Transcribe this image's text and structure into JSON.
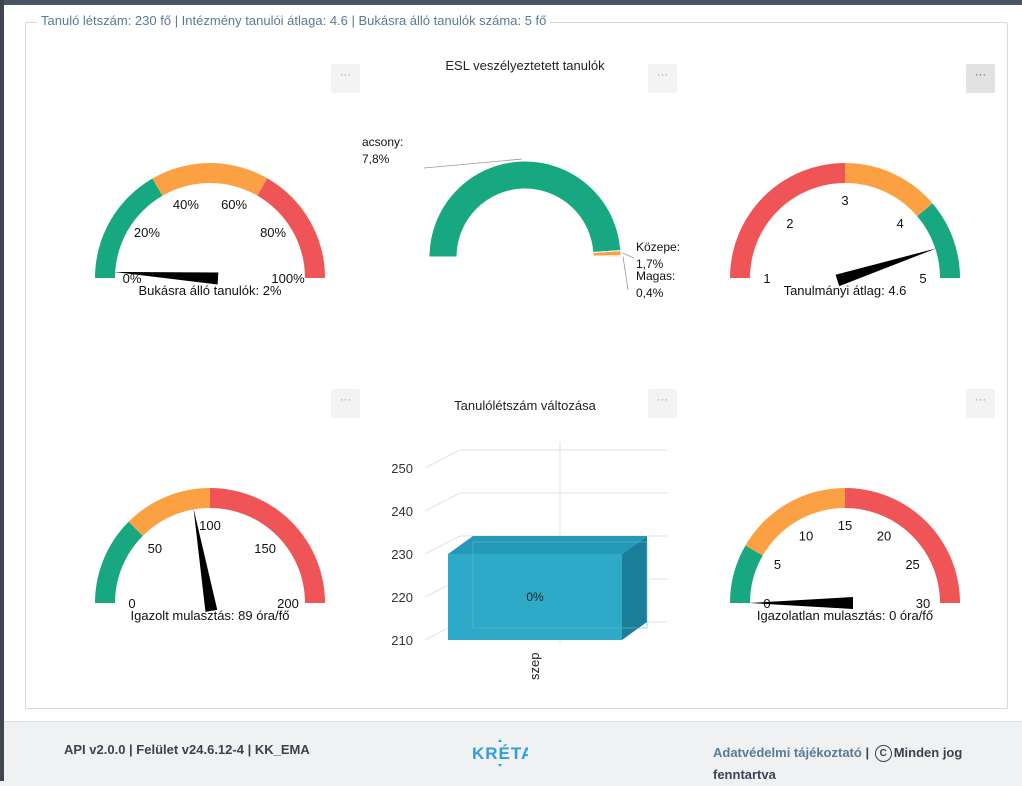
{
  "legend_text": "Tanuló létszám: 230 fő | Intézmény tanulói átlaga: 4.6 | Bukásra álló tanulók száma: 5 fő",
  "menu_icon": "···",
  "colors": {
    "green": "#17a881",
    "orange": "#fba143",
    "red": "#ef5456",
    "bar": "#2ea9c8",
    "needle": "#000000"
  },
  "gauges": [
    {
      "id": "bukas",
      "min": 0,
      "max": 100,
      "value": 2,
      "bands": [
        [
          0,
          33.3,
          "green"
        ],
        [
          33.3,
          66.6,
          "orange"
        ],
        [
          66.6,
          100,
          "red"
        ]
      ],
      "ticks": [
        "0%",
        "20%",
        "40%",
        "60%",
        "80%",
        "100%"
      ],
      "tick_values": [
        0,
        20,
        40,
        60,
        80,
        100
      ],
      "label": "Bukásra álló tanulók: 2%"
    },
    {
      "id": "atlag",
      "min": 1,
      "max": 5,
      "value": 4.6,
      "bands": [
        [
          1,
          3,
          "red"
        ],
        [
          3,
          4.1,
          "orange"
        ],
        [
          4.1,
          5,
          "green"
        ]
      ],
      "ticks": [
        "1",
        "2",
        "3",
        "4",
        "5"
      ],
      "tick_values": [
        1,
        2,
        3,
        4,
        5
      ],
      "label": "Tanulmányi átlag: 4.6"
    },
    {
      "id": "igazolt",
      "min": 0,
      "max": 200,
      "value": 89,
      "bands": [
        [
          0,
          50,
          "green"
        ],
        [
          50,
          100,
          "orange"
        ],
        [
          100,
          200,
          "red"
        ]
      ],
      "ticks": [
        "0",
        "50",
        "100",
        "150",
        "200"
      ],
      "tick_values": [
        0,
        50,
        100,
        150,
        200
      ],
      "label": "Igazolt mulasztás: 89 óra/fő"
    },
    {
      "id": "igazolatlan",
      "min": 0,
      "max": 30,
      "value": 0,
      "bands": [
        [
          0,
          5,
          "green"
        ],
        [
          5,
          15,
          "orange"
        ],
        [
          15,
          30,
          "red"
        ]
      ],
      "ticks": [
        "0",
        "5",
        "10",
        "15",
        "20",
        "25",
        "30"
      ],
      "tick_values": [
        0,
        5,
        10,
        15,
        20,
        25,
        30
      ],
      "label": "Igazolatlan mulasztás: 0 óra/fő"
    }
  ],
  "esl_chart": {
    "title": "ESL veszélyeztetett tanulók",
    "slices": [
      {
        "name": "Alacsony",
        "value": 97.8,
        "label_visible": "acsony:",
        "pct_visible": "7,8%",
        "color": "green"
      },
      {
        "name": "Közepes",
        "value": 1.7,
        "label_visible": "Közepe:",
        "pct_visible": "1,7%",
        "color": "orange"
      },
      {
        "name": "Magas",
        "value": 0.4,
        "label_visible": "Magas:",
        "pct_visible": "0,4%",
        "color": "red"
      }
    ]
  },
  "chart_data": {
    "type": "bar",
    "title": "Tanulólétszám változása",
    "categories": [
      "szep"
    ],
    "values": [
      230
    ],
    "data_labels": [
      "0%"
    ],
    "ylim": [
      210,
      250
    ],
    "yticks": [
      210,
      220,
      230,
      240,
      250
    ]
  },
  "footer": {
    "left": "API v2.0.0 | Felület v24.6.12-4 | KK_EMA",
    "logo": "KRÉTA",
    "privacy": "Adatvédelmi tájékoztató",
    "separator": "|",
    "copyright_symbol": "C",
    "rights": "Minden jog fenntartva"
  }
}
